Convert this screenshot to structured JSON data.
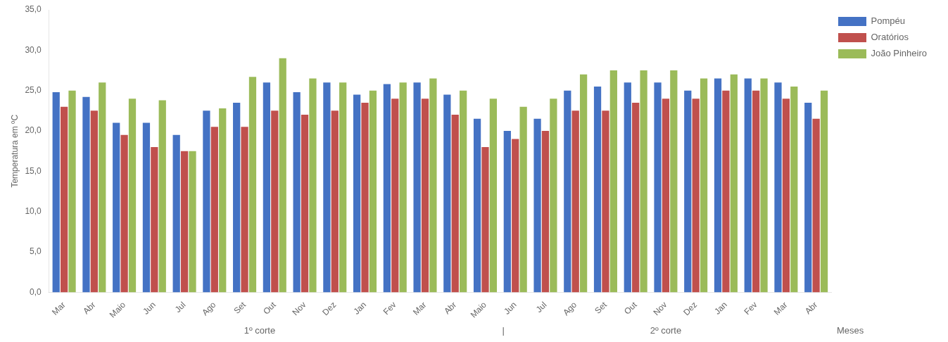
{
  "chart_data": {
    "type": "bar",
    "categories": [
      "Mar",
      "Abr",
      "Maio",
      "Jun",
      "Jul",
      "Ago",
      "Set",
      "Out",
      "Nov",
      "Dez",
      "Jan",
      "Fev",
      "Mar",
      "Abr",
      "Maio",
      "Jun",
      "Jul",
      "Ago",
      "Set",
      "Out",
      "Nov",
      "Dez",
      "Jan",
      "Fev",
      "Mar",
      "Abr"
    ],
    "series": [
      {
        "name": "Pompéu",
        "color": "#4472C4",
        "values": [
          24.8,
          24.2,
          21.0,
          21.0,
          19.5,
          22.5,
          23.5,
          26.0,
          24.8,
          26.0,
          24.5,
          25.8,
          26.0,
          24.5,
          21.5,
          20.0,
          21.5,
          25.0,
          25.5,
          26.0,
          26.0,
          25.0,
          26.5,
          26.5,
          26.0,
          23.5
        ]
      },
      {
        "name": "Oratórios",
        "color": "#C0504D",
        "values": [
          23.0,
          22.5,
          19.5,
          18.0,
          17.5,
          20.5,
          20.5,
          22.5,
          22.0,
          22.5,
          23.5,
          24.0,
          24.0,
          22.0,
          18.0,
          19.0,
          20.0,
          22.5,
          22.5,
          23.5,
          24.0,
          24.0,
          25.0,
          25.0,
          24.0,
          21.5
        ]
      },
      {
        "name": "João Pinheiro",
        "color": "#9BBB59",
        "values": [
          25.0,
          26.0,
          24.0,
          23.8,
          17.5,
          22.8,
          26.7,
          29.0,
          26.5,
          26.0,
          25.0,
          26.0,
          26.5,
          25.0,
          24.0,
          23.0,
          24.0,
          27.0,
          27.5,
          27.5,
          27.5,
          26.5,
          27.0,
          26.5,
          25.5,
          25.0
        ]
      }
    ],
    "ylabel": "Temperatura em ºC",
    "xlabel": "Meses",
    "annotations": [
      "1º corte",
      "|",
      "2º corte"
    ],
    "ylim": [
      0,
      35
    ],
    "yticks": [
      {
        "value": 0,
        "label": "0,0"
      },
      {
        "value": 5,
        "label": "5,0"
      },
      {
        "value": 10,
        "label": "10,0"
      },
      {
        "value": 15,
        "label": "15,0"
      },
      {
        "value": 20,
        "label": "20,0"
      },
      {
        "value": 25,
        "label": "25,0"
      },
      {
        "value": 30,
        "label": "30,0"
      },
      {
        "value": 35,
        "label": "35,0"
      }
    ],
    "grid": false,
    "legend": "right"
  }
}
